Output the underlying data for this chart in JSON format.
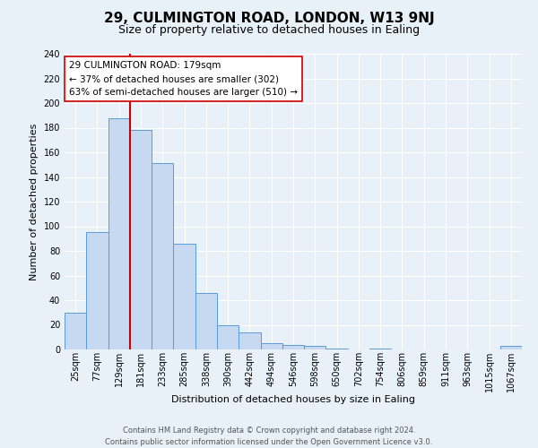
{
  "title": "29, CULMINGTON ROAD, LONDON, W13 9NJ",
  "subtitle": "Size of property relative to detached houses in Ealing",
  "xlabel": "Distribution of detached houses by size in Ealing",
  "ylabel": "Number of detached properties",
  "bar_labels": [
    "25sqm",
    "77sqm",
    "129sqm",
    "181sqm",
    "233sqm",
    "285sqm",
    "338sqm",
    "390sqm",
    "442sqm",
    "494sqm",
    "546sqm",
    "598sqm",
    "650sqm",
    "702sqm",
    "754sqm",
    "806sqm",
    "859sqm",
    "911sqm",
    "963sqm",
    "1015sqm",
    "1067sqm"
  ],
  "bar_heights": [
    30,
    95,
    188,
    178,
    151,
    86,
    46,
    20,
    14,
    5,
    4,
    3,
    1,
    0,
    1,
    0,
    0,
    0,
    0,
    0,
    3
  ],
  "bar_color": "#c6d9f0",
  "bar_edge_color": "#5b9bd5",
  "vline_x_index": 3,
  "vline_color": "#cc0000",
  "annotation_text_line1": "29 CULMINGTON ROAD: 179sqm",
  "annotation_text_line2": "← 37% of detached houses are smaller (302)",
  "annotation_text_line3": "63% of semi-detached houses are larger (510) →",
  "annotation_box_color": "#ffffff",
  "annotation_box_edge_color": "#cc0000",
  "ylim": [
    0,
    240
  ],
  "yticks": [
    0,
    20,
    40,
    60,
    80,
    100,
    120,
    140,
    160,
    180,
    200,
    220,
    240
  ],
  "footer_line1": "Contains HM Land Registry data © Crown copyright and database right 2024.",
  "footer_line2": "Contains public sector information licensed under the Open Government Licence v3.0.",
  "bg_color": "#e8f0f8",
  "plot_bg_color": "#e8f0f8",
  "grid_color": "#ffffff",
  "title_fontsize": 11,
  "subtitle_fontsize": 9,
  "axis_label_fontsize": 8,
  "tick_fontsize": 7,
  "annotation_fontsize": 7.5,
  "footer_fontsize": 6
}
